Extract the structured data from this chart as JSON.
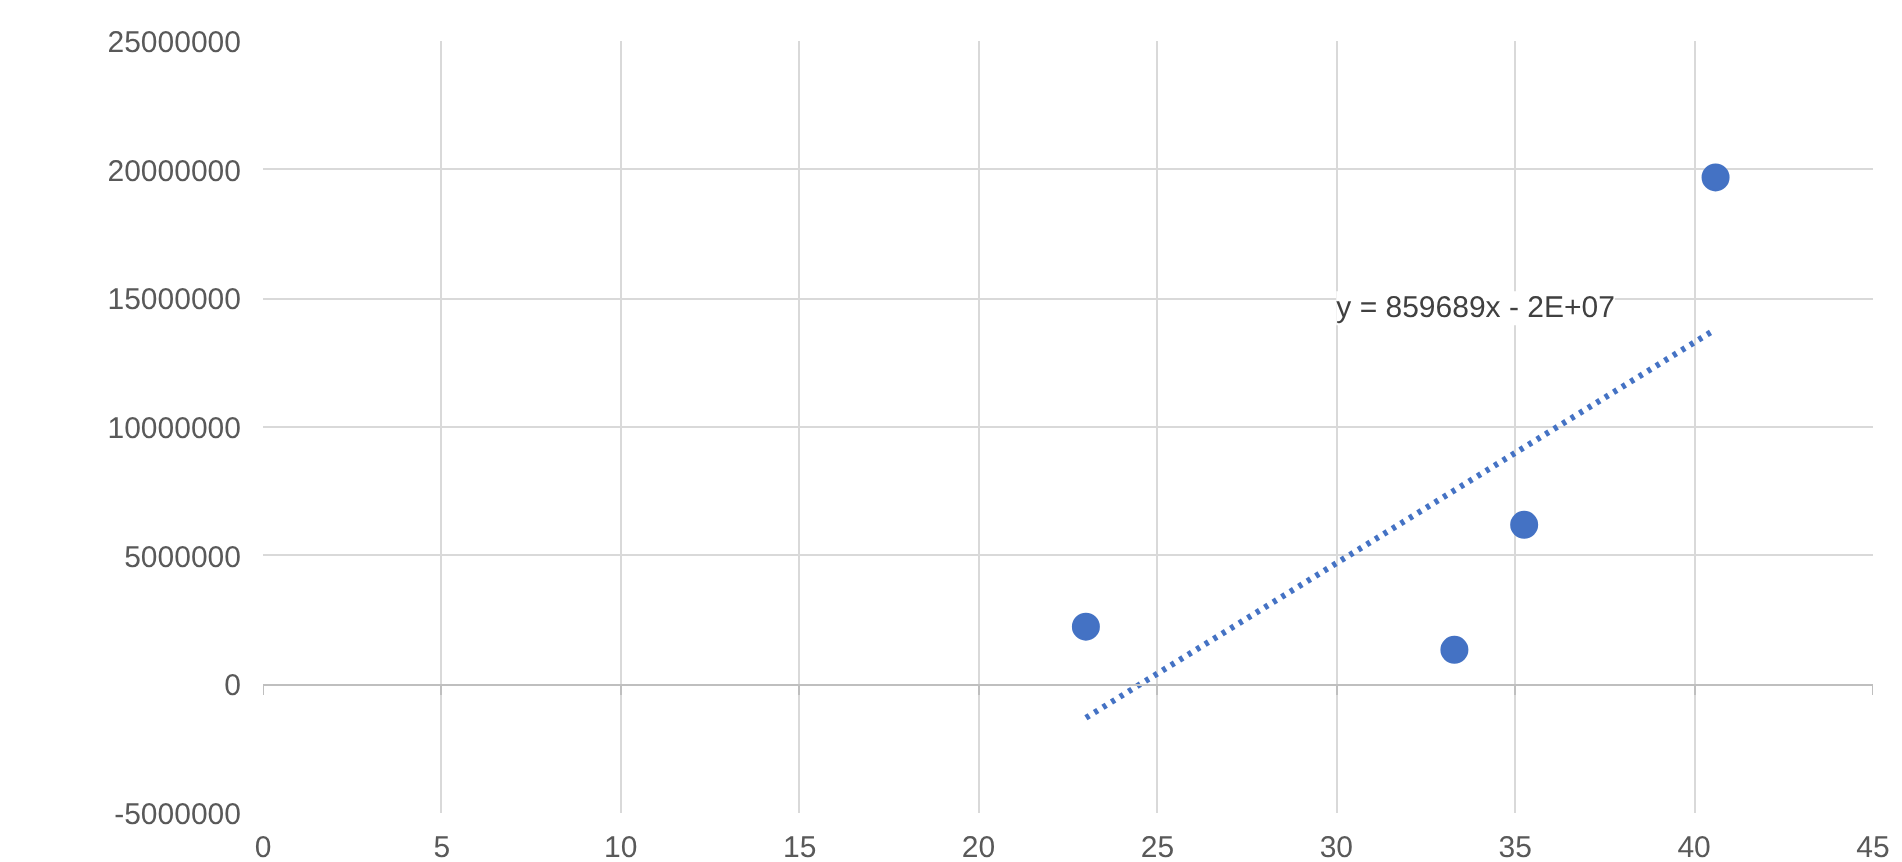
{
  "chart_data": {
    "type": "scatter",
    "xlim": [
      0,
      45
    ],
    "ylim": [
      -5000000,
      25000000
    ],
    "xticks": [
      0,
      5,
      10,
      15,
      20,
      25,
      30,
      35,
      40,
      45
    ],
    "yticks": [
      -5000000,
      0,
      5000000,
      10000000,
      15000000,
      20000000,
      25000000
    ],
    "grid": true,
    "marker": "circle",
    "series": [
      {
        "color": "#4472c4",
        "x": [
          23.0,
          33.3,
          35.25,
          40.6
        ],
        "values": [
          2240000,
          1340000,
          6200000,
          19700000
        ]
      },
      {
        "type": "line",
        "color": "#4472c4",
        "line_style": "dotted",
        "marker": "none",
        "x": [
          23.0,
          40.6
        ],
        "values": [
          -1300000,
          13800000
        ]
      }
    ],
    "annotations": [
      "y = 859689x - 2E+07"
    ]
  }
}
